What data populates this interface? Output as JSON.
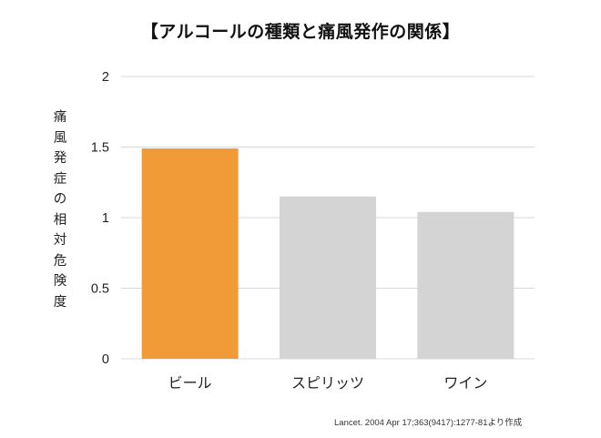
{
  "chart_data": {
    "type": "bar",
    "title": "【アルコールの種類と痛風発作の関係】",
    "xlabel": "",
    "ylabel": "痛風発症の相対危険度",
    "categories": [
      "ビール",
      "スピリッツ",
      "ワイン"
    ],
    "values": [
      1.49,
      1.15,
      1.04
    ],
    "bar_colors": [
      "#f09a38",
      "#d4d4d4",
      "#d4d4d4"
    ],
    "ylim": [
      0,
      2
    ],
    "yticks": [
      "0",
      "0.5",
      "1",
      "1.5",
      "2"
    ],
    "grid": true,
    "source": "Lancet. 2004 Apr 17;363(9417):1277-81より作成"
  },
  "colors": {
    "highlight": "#f09a38",
    "default_bar": "#d4d4d4",
    "gridline": "#d9d9d9"
  }
}
